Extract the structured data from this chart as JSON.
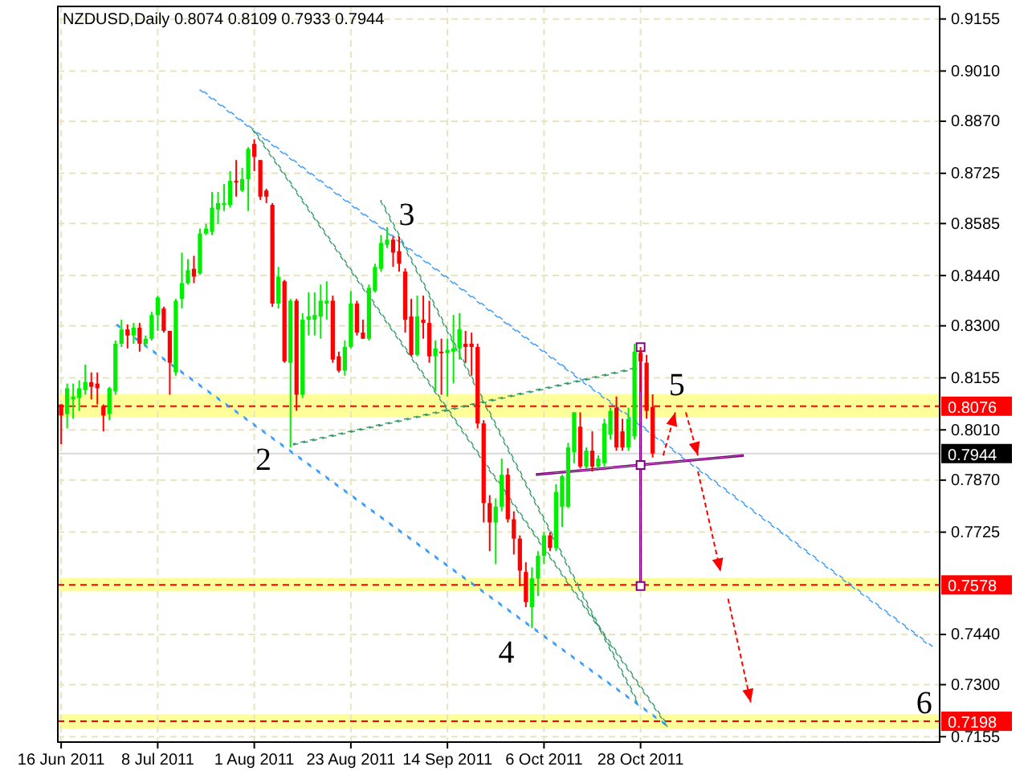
{
  "chart_data": {
    "type": "candlestick",
    "title": "NZDUSD,Daily  0.8074 0.8109 0.7933 0.7944",
    "categories": [
      "16 Jun 2011",
      null,
      null,
      null,
      null,
      null,
      null,
      null,
      null,
      null,
      null,
      null,
      null,
      null,
      null,
      null,
      "8 Jul 2011",
      null,
      null,
      null,
      null,
      null,
      null,
      null,
      null,
      null,
      null,
      null,
      null,
      null,
      null,
      null,
      "1 Aug 2011",
      null,
      null,
      null,
      null,
      null,
      null,
      null,
      null,
      null,
      null,
      null,
      null,
      null,
      null,
      null,
      "23 Aug 2011",
      null,
      null,
      null,
      null,
      null,
      null,
      null,
      null,
      null,
      null,
      null,
      null,
      null,
      null,
      null,
      "14 Sep 2011",
      null,
      null,
      null,
      null,
      null,
      null,
      null,
      null,
      null,
      null,
      null,
      null,
      null,
      null,
      null,
      "6 Oct 2011",
      null,
      null,
      null,
      null,
      null,
      null,
      null,
      null,
      null,
      null,
      null,
      null,
      null,
      null,
      null,
      "28 Oct 2011",
      null,
      null,
      null,
      null,
      null,
      null,
      null,
      null,
      null,
      null,
      null,
      null,
      null,
      null,
      null,
      null,
      null,
      null,
      null,
      null,
      null,
      null,
      null,
      null,
      null,
      null,
      null,
      null,
      null,
      null,
      null,
      null,
      null,
      null,
      null,
      null,
      null,
      null,
      null,
      null,
      null,
      null,
      null,
      null,
      null,
      null,
      null,
      null,
      null
    ],
    "ohlc": [
      [
        0.8081,
        0.8081,
        0.797,
        0.805
      ],
      [
        0.8054,
        0.8139,
        0.8014,
        0.8126
      ],
      [
        0.8095,
        0.8139,
        0.8041,
        0.8103
      ],
      [
        0.8099,
        0.8148,
        0.8063,
        0.8126
      ],
      [
        0.8121,
        0.8192,
        0.8108,
        0.8143
      ],
      [
        0.8143,
        0.817,
        0.8095,
        0.813
      ],
      [
        0.8139,
        0.817,
        0.8081,
        0.8126
      ],
      [
        0.8077,
        0.8081,
        0.8006,
        0.805
      ],
      [
        0.8054,
        0.813,
        0.8037,
        0.8126
      ],
      [
        0.8117,
        0.8259,
        0.8108,
        0.825
      ],
      [
        0.825,
        0.8317,
        0.8241,
        0.829
      ],
      [
        0.829,
        0.8304,
        0.8237,
        0.8273
      ],
      [
        0.8273,
        0.8308,
        0.825,
        0.8295
      ],
      [
        0.8295,
        0.8308,
        0.8228,
        0.825
      ],
      [
        0.825,
        0.8273,
        0.8241,
        0.8264
      ],
      [
        0.8264,
        0.8339,
        0.8259,
        0.833
      ],
      [
        0.833,
        0.8384,
        0.8286,
        0.8379
      ],
      [
        0.8348,
        0.8353,
        0.8281,
        0.8286
      ],
      [
        0.8286,
        0.8286,
        0.8108,
        0.8197
      ],
      [
        0.817,
        0.8375,
        0.8161,
        0.837
      ],
      [
        0.8375,
        0.8504,
        0.8348,
        0.8419
      ],
      [
        0.8419,
        0.8486,
        0.8415,
        0.8455
      ],
      [
        0.8459,
        0.8495,
        0.8419,
        0.8437
      ],
      [
        0.8446,
        0.8571,
        0.8442,
        0.8557
      ],
      [
        0.8557,
        0.8584,
        0.8553,
        0.8571
      ],
      [
        0.8562,
        0.8673,
        0.8553,
        0.8629
      ],
      [
        0.8624,
        0.8673,
        0.8584,
        0.8642
      ],
      [
        0.8637,
        0.8695,
        0.862,
        0.8642
      ],
      [
        0.8637,
        0.8731,
        0.8629,
        0.8704
      ],
      [
        0.8704,
        0.8762,
        0.866,
        0.87
      ],
      [
        0.8677,
        0.874,
        0.8673,
        0.8709
      ],
      [
        0.8709,
        0.8798,
        0.862,
        0.8793
      ],
      [
        0.8807,
        0.882,
        0.8731,
        0.8771
      ],
      [
        0.8762,
        0.8762,
        0.8651,
        0.866
      ],
      [
        0.8677,
        0.8682,
        0.8642,
        0.866
      ],
      [
        0.8637,
        0.8642,
        0.8353,
        0.8362
      ],
      [
        0.8362,
        0.8464,
        0.8348,
        0.8437
      ],
      [
        0.8424,
        0.8428,
        0.8197,
        0.8201
      ],
      [
        0.8197,
        0.8375,
        0.7961,
        0.837
      ],
      [
        0.837,
        0.8375,
        0.8063,
        0.8108
      ],
      [
        0.8108,
        0.8335,
        0.8099,
        0.8317
      ],
      [
        0.8317,
        0.8393,
        0.8273,
        0.8326
      ],
      [
        0.8317,
        0.8393,
        0.8273,
        0.833
      ],
      [
        0.8326,
        0.8415,
        0.8264,
        0.837
      ],
      [
        0.8362,
        0.8424,
        0.8317,
        0.837
      ],
      [
        0.837,
        0.8384,
        0.8197,
        0.8206
      ],
      [
        0.8215,
        0.8228,
        0.817,
        0.8175
      ],
      [
        0.8175,
        0.8259,
        0.8161,
        0.8241
      ],
      [
        0.8241,
        0.8397,
        0.8237,
        0.8362
      ],
      [
        0.8362,
        0.837,
        0.8273,
        0.8281
      ],
      [
        0.8281,
        0.8317,
        0.8264,
        0.8264
      ],
      [
        0.8264,
        0.8415,
        0.8259,
        0.8406
      ],
      [
        0.8397,
        0.8473,
        0.8393,
        0.8464
      ],
      [
        0.8459,
        0.8553,
        0.8451,
        0.8531
      ],
      [
        0.8526,
        0.8575,
        0.8517,
        0.854
      ],
      [
        0.854,
        0.8549,
        0.8464,
        0.8504
      ],
      [
        0.8508,
        0.8549,
        0.8451,
        0.8473
      ],
      [
        0.8451,
        0.846,
        0.8281,
        0.8317
      ],
      [
        0.8326,
        0.8375,
        0.8215,
        0.8219
      ],
      [
        0.8219,
        0.8384,
        0.8215,
        0.8326
      ],
      [
        0.8317,
        0.8384,
        0.8264,
        0.8308
      ],
      [
        0.8308,
        0.837,
        0.8197,
        0.8215
      ],
      [
        0.8215,
        0.8259,
        0.8117,
        0.8237
      ],
      [
        0.8228,
        0.8264,
        0.8108,
        0.8224
      ],
      [
        0.8224,
        0.8264,
        0.8103,
        0.8233
      ],
      [
        0.8228,
        0.833,
        0.8139,
        0.8237
      ],
      [
        0.8237,
        0.8335,
        0.8206,
        0.829
      ],
      [
        0.825,
        0.8286,
        0.8197,
        0.8241
      ],
      [
        0.825,
        0.8281,
        0.8161,
        0.8241
      ],
      [
        0.8241,
        0.825,
        0.8014,
        0.8028
      ],
      [
        0.8028,
        0.8037,
        0.7752,
        0.7806
      ],
      [
        0.7806,
        0.7828,
        0.7672,
        0.7752
      ],
      [
        0.7752,
        0.7819,
        0.7636,
        0.7796
      ],
      [
        0.7796,
        0.793,
        0.7783,
        0.7885
      ],
      [
        0.7885,
        0.7903,
        0.7752,
        0.7761
      ],
      [
        0.7761,
        0.7783,
        0.7663,
        0.7707
      ],
      [
        0.7707,
        0.7716,
        0.7574,
        0.7618
      ],
      [
        0.7614,
        0.7641,
        0.7516,
        0.753
      ],
      [
        0.7516,
        0.7627,
        0.7458,
        0.7596
      ],
      [
        0.7596,
        0.7672,
        0.7547,
        0.7659
      ],
      [
        0.7659,
        0.7725,
        0.7636,
        0.7716
      ],
      [
        0.7716,
        0.7725,
        0.7672,
        0.7681
      ],
      [
        0.7681,
        0.7859,
        0.7672,
        0.7837
      ],
      [
        0.7796,
        0.7885,
        0.7739,
        0.7881
      ],
      [
        0.7796,
        0.7974,
        0.7792,
        0.7961
      ],
      [
        0.7948,
        0.8059,
        0.7917,
        0.8059
      ],
      [
        0.8019,
        0.8059,
        0.7903,
        0.7908
      ],
      [
        0.7908,
        0.7961,
        0.7903,
        0.7952
      ],
      [
        0.7952,
        0.8006,
        0.7894,
        0.7908
      ],
      [
        0.7908,
        0.7939,
        0.7903,
        0.793
      ],
      [
        0.7917,
        0.8041,
        0.7908,
        0.8028
      ],
      [
        0.7997,
        0.8072,
        0.7983,
        0.8063
      ],
      [
        0.8072,
        0.8103,
        0.7952,
        0.7961
      ],
      [
        0.8006,
        0.8041,
        0.7952,
        0.7961
      ],
      [
        0.7961,
        0.8072,
        0.7952,
        0.8041
      ],
      [
        0.7992,
        0.825,
        0.7983,
        0.8228
      ],
      [
        0.8224,
        0.8241,
        0.8117,
        0.8201
      ],
      [
        0.8197,
        0.8219,
        0.8041,
        0.8063
      ],
      [
        0.8074,
        0.8109,
        0.7933,
        0.7944
      ],
      null,
      null,
      null,
      null,
      null,
      null,
      null,
      null,
      null,
      null,
      null,
      null,
      null,
      null,
      null,
      null,
      null,
      null,
      null,
      null,
      null,
      null,
      null,
      null,
      null,
      null,
      null,
      null,
      null,
      null,
      null,
      null,
      null,
      null,
      null,
      null,
      null,
      null,
      null,
      null,
      null,
      null,
      null,
      null,
      null,
      null,
      null
    ],
    "ylim": [
      0.714,
      0.919
    ],
    "yticks": [
      {
        "value": 0.7155,
        "label": "0.7155"
      },
      {
        "value": 0.73,
        "label": "0.7300"
      },
      {
        "value": 0.744,
        "label": "0.7440"
      },
      {
        "value": 0.7725,
        "label": "0.7725"
      },
      {
        "value": 0.787,
        "label": "0.7870"
      },
      {
        "value": 0.801,
        "label": "0.8010"
      },
      {
        "value": 0.8155,
        "label": "0.8155"
      },
      {
        "value": 0.83,
        "label": "0.8300"
      },
      {
        "value": 0.844,
        "label": "0.8440"
      },
      {
        "value": 0.8585,
        "label": "0.8585"
      },
      {
        "value": 0.8725,
        "label": "0.8725"
      },
      {
        "value": 0.887,
        "label": "0.8870"
      },
      {
        "value": 0.901,
        "label": "0.9010"
      },
      {
        "value": 0.9155,
        "label": "0.9155"
      }
    ],
    "grid": true,
    "ref_lines": [
      {
        "axis": "y",
        "value": 0.8076,
        "label": "0.8076",
        "color": "#ff0000",
        "line_style": "dashed"
      },
      {
        "axis": "y",
        "value": 0.7578,
        "label": "0.7578",
        "color": "#ff0000",
        "line_style": "dashed"
      },
      {
        "axis": "y",
        "value": 0.7198,
        "label": "0.7198",
        "color": "#ff0000",
        "line_style": "dashed"
      },
      {
        "axis": "y",
        "value": 0.7944,
        "label": "0.7944",
        "color": "#000000",
        "line_style": "solid"
      }
    ],
    "bands": [
      {
        "axis": "y",
        "from": 0.8045,
        "to": 0.811,
        "color": "#ffff80"
      },
      {
        "axis": "y",
        "from": 0.756,
        "to": 0.7598,
        "color": "#ffff80"
      },
      {
        "axis": "y",
        "from": 0.7178,
        "to": 0.7218,
        "color": "#ffff80"
      }
    ],
    "annotations": [
      {
        "text": "2",
        "y": 0.7961
      },
      "3",
      "4",
      "5",
      {
        "text": "6",
        "y": 0.7198
      }
    ]
  }
}
